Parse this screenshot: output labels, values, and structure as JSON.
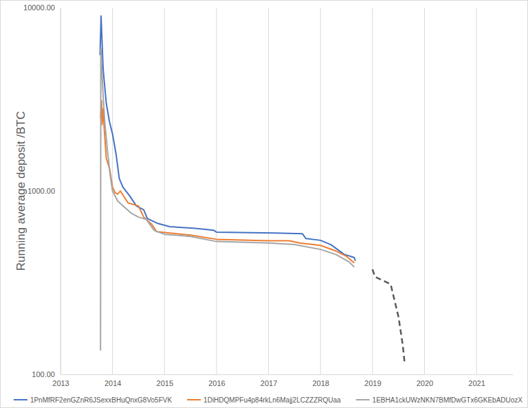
{
  "chart_data": {
    "type": "line",
    "y_label": "Running average deposit /BTC",
    "log": "y",
    "grid": "x",
    "legend": "bottom",
    "xlim": [
      2013,
      2021.7
    ],
    "xticks": [
      2013,
      2014,
      2015,
      2016,
      2017,
      2018,
      2019,
      2020,
      2021
    ],
    "ylim": [
      100,
      10000
    ],
    "yticks": [
      {
        "value": 100,
        "label": "100.00"
      },
      {
        "value": 1000,
        "label": "1000.00"
      },
      {
        "value": 10000,
        "label": "10000.00"
      }
    ],
    "series": [
      {
        "name": "1PnMfRF2enGZnR6JSexxBHuQnxG8Vo5FVK",
        "color": "#4472c4",
        "line_style": "solid",
        "x": [
          2013.76,
          2013.78,
          2013.82,
          2013.84,
          2013.88,
          2013.94,
          2014.0,
          2014.07,
          2014.13,
          2014.2,
          2014.33,
          2014.46,
          2014.6,
          2014.67,
          2014.87,
          2015.1,
          2015.6,
          2015.95,
          2016.0,
          2017.13,
          2017.65,
          2017.72,
          2018.0,
          2018.2,
          2018.45,
          2018.65,
          2018.67
        ],
        "values": [
          5500,
          9000,
          4640,
          4000,
          3010,
          2400,
          2046,
          1580,
          1170,
          1050,
          940,
          828,
          790,
          707,
          665,
          639,
          625,
          610,
          596,
          590,
          585,
          550,
          538,
          510,
          452,
          433,
          416
        ]
      },
      {
        "name": "1DiHDQMPFu4p84rkLn6Majj2LCZZZRQUaa",
        "color": "#ed7d31",
        "line_style": "solid",
        "x": [
          2013.77,
          2013.79,
          2013.8,
          2013.82,
          2013.84,
          2013.88,
          2013.95,
          2014.0,
          2014.05,
          2014.1,
          2014.15,
          2014.3,
          2014.5,
          2014.6,
          2014.75,
          2014.85,
          2015.1,
          2015.5,
          2016.0,
          2017.0,
          2017.4,
          2017.6,
          2018.0,
          2018.3,
          2018.5,
          2018.65
        ],
        "values": [
          2500,
          3100,
          2300,
          2800,
          2200,
          1510,
          1300,
          1050,
          980,
          960,
          1000,
          860,
          828,
          720,
          660,
          600,
          590,
          575,
          545,
          535,
          535,
          520,
          505,
          470,
          440,
          405
        ]
      },
      {
        "name": "1EBHA1ckUWzNKN7BMfDwGTx6GKEbADUozX",
        "color": "#a5a5a5",
        "line_style": "solid",
        "x": [
          2013.77,
          2013.775,
          2013.8,
          2013.82,
          2013.85,
          2013.9,
          2013.95,
          2014.0,
          2014.1,
          2014.2,
          2014.35,
          2014.5,
          2014.65,
          2014.8,
          2015.0,
          2015.5,
          2016.0,
          2017.0,
          2017.5,
          2018.0,
          2018.3,
          2018.55,
          2018.65
        ],
        "values": [
          135,
          6000,
          4300,
          3300,
          2400,
          1700,
          1250,
          1000,
          880,
          830,
          760,
          720,
          700,
          610,
          580,
          565,
          530,
          520,
          510,
          480,
          450,
          410,
          385
        ]
      },
      {
        "color": "#595959",
        "line_style": "dashed",
        "x": [
          2019.0,
          2019.05,
          2019.15,
          2019.25,
          2019.35,
          2019.4,
          2019.5,
          2019.58,
          2019.62
        ],
        "values": [
          374,
          340,
          330,
          320,
          310,
          270,
          206,
          146,
          114
        ]
      }
    ]
  }
}
